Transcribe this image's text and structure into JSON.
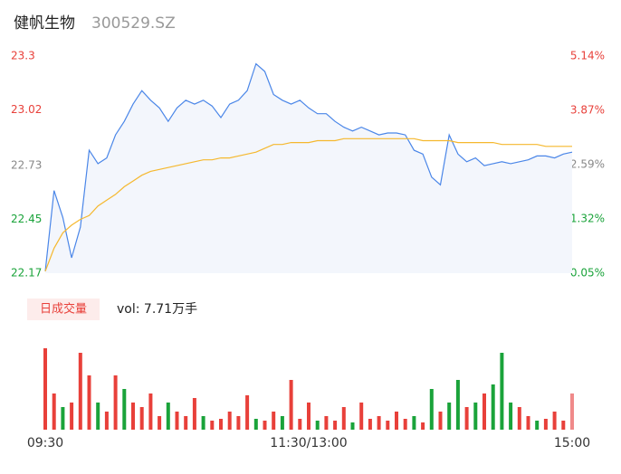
{
  "chart_data": [
    {
      "type": "line",
      "title": "健帆生物",
      "subtitle": "300529.SZ",
      "x": [
        0,
        4,
        8,
        12,
        16,
        20,
        24,
        28,
        32,
        36,
        40,
        44,
        48,
        52,
        56,
        60,
        64,
        68,
        72,
        76,
        80,
        84,
        88,
        92,
        96,
        100,
        104,
        108,
        112,
        116,
        120,
        124,
        128,
        132,
        136,
        140,
        144,
        148,
        152,
        156,
        160,
        164,
        168,
        172,
        176,
        180,
        184,
        188,
        192,
        196,
        200,
        204,
        208,
        212,
        216,
        220,
        224,
        228,
        232,
        236,
        240
      ],
      "xlim": [
        0,
        240
      ],
      "series": [
        {
          "color": "#4a86e8",
          "values": [
            22.18,
            22.6,
            22.46,
            22.25,
            22.41,
            22.81,
            22.74,
            22.77,
            22.89,
            22.96,
            23.05,
            23.12,
            23.07,
            23.03,
            22.96,
            23.03,
            23.07,
            23.05,
            23.07,
            23.04,
            22.98,
            23.05,
            23.07,
            23.12,
            23.26,
            23.22,
            23.1,
            23.07,
            23.05,
            23.07,
            23.03,
            23.0,
            23.0,
            22.96,
            22.93,
            22.91,
            22.93,
            22.91,
            22.89,
            22.9,
            22.9,
            22.89,
            22.81,
            22.79,
            22.67,
            22.63,
            22.89,
            22.79,
            22.75,
            22.77,
            22.73,
            22.74,
            22.75,
            22.74,
            22.75,
            22.76,
            22.78,
            22.78,
            22.77,
            22.79,
            22.8
          ]
        },
        {
          "color": "#f5b82e",
          "values": [
            22.18,
            22.3,
            22.38,
            22.42,
            22.45,
            22.47,
            22.52,
            22.55,
            22.58,
            22.62,
            22.65,
            22.68,
            22.7,
            22.71,
            22.72,
            22.73,
            22.74,
            22.75,
            22.76,
            22.76,
            22.77,
            22.77,
            22.78,
            22.79,
            22.8,
            22.82,
            22.84,
            22.84,
            22.85,
            22.85,
            22.85,
            22.86,
            22.86,
            22.86,
            22.87,
            22.87,
            22.87,
            22.87,
            22.87,
            22.87,
            22.87,
            22.87,
            22.87,
            22.86,
            22.86,
            22.86,
            22.86,
            22.85,
            22.85,
            22.85,
            22.85,
            22.85,
            22.84,
            22.84,
            22.84,
            22.84,
            22.84,
            22.83,
            22.83,
            22.83,
            22.83
          ]
        }
      ],
      "ylim": [
        22.17,
        23.3
      ],
      "yticks": [
        23.3,
        23.02,
        22.73,
        22.45,
        22.17
      ],
      "ytick_colors": [
        "#e8403a",
        "#e8403a",
        "#888888",
        "#1aa33a",
        "#1aa33a"
      ],
      "y2lim": [
        0.05,
        5.14
      ],
      "y2ticks": [
        {
          "value": 5.14,
          "label": "5.14%"
        },
        {
          "value": 3.87,
          "label": "3.87%"
        },
        {
          "value": 2.59,
          "label": "2.59%"
        },
        {
          "value": 1.32,
          "label": "1.32%"
        },
        {
          "value": 0.05,
          "label": "0.05%"
        }
      ],
      "y2tick_colors": [
        "#e8403a",
        "#e8403a",
        "#888888",
        "#1aa33a",
        "#1aa33a"
      ]
    },
    {
      "type": "bar",
      "button": "日成交量",
      "summary": "vol: 7.71万手",
      "x": [
        0,
        4,
        8,
        12,
        16,
        20,
        24,
        28,
        32,
        36,
        40,
        44,
        48,
        52,
        56,
        60,
        64,
        68,
        72,
        76,
        80,
        84,
        88,
        92,
        96,
        100,
        104,
        108,
        112,
        116,
        120,
        124,
        128,
        132,
        136,
        140,
        144,
        148,
        152,
        156,
        160,
        164,
        168,
        172,
        176,
        180,
        184,
        188,
        192,
        196,
        200,
        204,
        208,
        212,
        216,
        220,
        224,
        228,
        232,
        236,
        240
      ],
      "xlim": [
        0,
        240
      ],
      "values": [
        900,
        400,
        250,
        300,
        850,
        600,
        300,
        200,
        600,
        450,
        300,
        250,
        400,
        150,
        300,
        200,
        150,
        350,
        150,
        100,
        120,
        200,
        150,
        380,
        120,
        100,
        200,
        150,
        550,
        120,
        300,
        100,
        150,
        100,
        250,
        80,
        300,
        120,
        150,
        100,
        200,
        120,
        150,
        80,
        450,
        200,
        300,
        550,
        250,
        300,
        400,
        500,
        850,
        300,
        250,
        150,
        100,
        120,
        200,
        100,
        400
      ],
      "colors": [
        "#e8403a",
        "#e8403a",
        "#1aa33a",
        "#e8403a",
        "#e8403a",
        "#e8403a",
        "#1aa33a",
        "#e8403a",
        "#e8403a",
        "#1aa33a",
        "#e8403a",
        "#e8403a",
        "#e8403a",
        "#e8403a",
        "#1aa33a",
        "#e8403a",
        "#e8403a",
        "#e8403a",
        "#1aa33a",
        "#e8403a",
        "#e8403a",
        "#e8403a",
        "#e8403a",
        "#e8403a",
        "#1aa33a",
        "#e8403a",
        "#e8403a",
        "#1aa33a",
        "#e8403a",
        "#e8403a",
        "#e8403a",
        "#1aa33a",
        "#e8403a",
        "#e8403a",
        "#e8403a",
        "#1aa33a",
        "#e8403a",
        "#e8403a",
        "#e8403a",
        "#e8403a",
        "#e8403a",
        "#e8403a",
        "#1aa33a",
        "#e8403a",
        "#1aa33a",
        "#e8403a",
        "#1aa33a",
        "#1aa33a",
        "#e8403a",
        "#1aa33a",
        "#e8403a",
        "#1aa33a",
        "#1aa33a",
        "#1aa33a",
        "#e8403a",
        "#e8403a",
        "#1aa33a",
        "#e8403a",
        "#e8403a",
        "#e8403a",
        "#f08a8a"
      ],
      "ylim": [
        0,
        950
      ],
      "xticks": [
        {
          "value": 0,
          "label": "09:30"
        },
        {
          "value": 120,
          "label": "11:30/13:00"
        },
        {
          "value": 240,
          "label": "15:00"
        }
      ]
    }
  ]
}
